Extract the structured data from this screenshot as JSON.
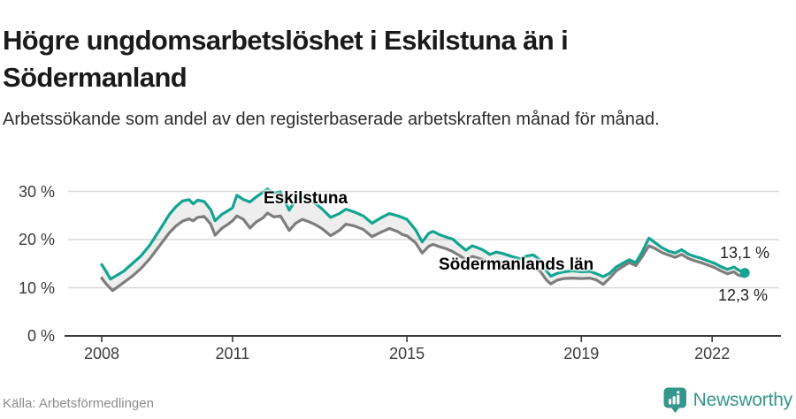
{
  "header": {
    "title": "Högre ungdomsarbetslöshet i Eskilstuna än i Södermanland",
    "subtitle": "Arbetssökande som andel av den registerbaserade arbetskraften månad för månad."
  },
  "footer": {
    "source": "Källa: Arbetsförmedlingen",
    "brand": "Newsworthy",
    "logo_icon": "bar-chart-speech-bubble-icon"
  },
  "colors": {
    "accent_teal": "#12a491",
    "gray_series": "#7d7d7d",
    "grid": "#d8d8d8",
    "axis": "#3a3a3a",
    "band_fill": "rgba(120,120,120,0.13)",
    "brand_teal": "#35968b",
    "title_text": "#1a1a1a",
    "tick_text": "#3b3b3b",
    "source_text": "#8c8c8c"
  },
  "chart_data": {
    "type": "line",
    "title": "Högre ungdomsarbetslöshet i Eskilstuna än i Södermanland",
    "subtitle": "Arbetssökande som andel av den registerbaserade arbetskraften månad för månad",
    "unit": "%",
    "xlabel": "",
    "ylabel": "",
    "grid": "horizontal",
    "legend": "inline-labels",
    "xlim": [
      2007.2,
      2023.5
    ],
    "ylim": [
      0,
      33
    ],
    "x_ticks": [
      {
        "label": "2008",
        "year": 2008
      },
      {
        "label": "2011",
        "year": 2011
      },
      {
        "label": "2015",
        "year": 2015
      },
      {
        "label": "2019",
        "year": 2019
      },
      {
        "label": "2022",
        "year": 2022
      }
    ],
    "y_ticks": [
      {
        "label": "0 %",
        "value": 0
      },
      {
        "label": "10 %",
        "value": 10
      },
      {
        "label": "20 %",
        "value": 20
      },
      {
        "label": "30 %",
        "value": 30
      }
    ],
    "band_fill_between_series": true,
    "series": [
      {
        "name": "Eskilstuna",
        "label": "Eskilstuna",
        "color": "#12a491",
        "end_label": "13,1 %",
        "end_value": 13.1,
        "end_marker": true,
        "points": [
          [
            2008.0,
            14.8
          ],
          [
            2008.1,
            13.4
          ],
          [
            2008.2,
            11.8
          ],
          [
            2008.35,
            12.6
          ],
          [
            2008.5,
            13.4
          ],
          [
            2008.7,
            15.0
          ],
          [
            2008.9,
            16.6
          ],
          [
            2009.1,
            18.8
          ],
          [
            2009.25,
            20.9
          ],
          [
            2009.4,
            23.0
          ],
          [
            2009.55,
            25.2
          ],
          [
            2009.7,
            26.8
          ],
          [
            2009.85,
            28.0
          ],
          [
            2010.0,
            28.3
          ],
          [
            2010.1,
            27.4
          ],
          [
            2010.2,
            28.2
          ],
          [
            2010.35,
            27.9
          ],
          [
            2010.5,
            26.2
          ],
          [
            2010.6,
            23.9
          ],
          [
            2010.75,
            25.2
          ],
          [
            2010.9,
            26.0
          ],
          [
            2011.0,
            26.6
          ],
          [
            2011.1,
            29.2
          ],
          [
            2011.25,
            28.3
          ],
          [
            2011.4,
            27.8
          ],
          [
            2011.55,
            28.9
          ],
          [
            2011.7,
            29.8
          ],
          [
            2011.8,
            30.5
          ],
          [
            2011.95,
            29.6
          ],
          [
            2012.1,
            29.9
          ],
          [
            2012.3,
            26.1
          ],
          [
            2012.45,
            28.3
          ],
          [
            2012.6,
            28.8
          ],
          [
            2012.75,
            28.2
          ],
          [
            2012.9,
            27.5
          ],
          [
            2013.05,
            26.4
          ],
          [
            2013.25,
            24.6
          ],
          [
            2013.45,
            25.4
          ],
          [
            2013.6,
            26.3
          ],
          [
            2013.8,
            25.7
          ],
          [
            2014.0,
            24.9
          ],
          [
            2014.2,
            23.4
          ],
          [
            2014.4,
            24.5
          ],
          [
            2014.6,
            25.4
          ],
          [
            2014.8,
            24.9
          ],
          [
            2015.0,
            24.2
          ],
          [
            2015.2,
            22.0
          ],
          [
            2015.35,
            19.5
          ],
          [
            2015.5,
            21.3
          ],
          [
            2015.6,
            21.7
          ],
          [
            2015.75,
            21.0
          ],
          [
            2015.9,
            20.5
          ],
          [
            2016.05,
            20.1
          ],
          [
            2016.2,
            18.9
          ],
          [
            2016.35,
            17.8
          ],
          [
            2016.5,
            18.7
          ],
          [
            2016.65,
            18.2
          ],
          [
            2016.75,
            17.8
          ],
          [
            2016.9,
            16.9
          ],
          [
            2017.05,
            17.4
          ],
          [
            2017.2,
            17.1
          ],
          [
            2017.4,
            16.5
          ],
          [
            2017.6,
            16.0
          ],
          [
            2017.75,
            16.6
          ],
          [
            2017.9,
            16.8
          ],
          [
            2018.05,
            15.8
          ],
          [
            2018.2,
            13.5
          ],
          [
            2018.3,
            12.4
          ],
          [
            2018.45,
            13.0
          ],
          [
            2018.6,
            13.3
          ],
          [
            2018.8,
            13.5
          ],
          [
            2019.0,
            13.3
          ],
          [
            2019.2,
            13.4
          ],
          [
            2019.35,
            12.9
          ],
          [
            2019.5,
            12.3
          ],
          [
            2019.65,
            13.0
          ],
          [
            2019.8,
            14.3
          ],
          [
            2019.95,
            15.1
          ],
          [
            2020.1,
            15.8
          ],
          [
            2020.25,
            15.2
          ],
          [
            2020.4,
            17.5
          ],
          [
            2020.55,
            20.3
          ],
          [
            2020.7,
            19.3
          ],
          [
            2020.85,
            18.3
          ],
          [
            2021.0,
            17.6
          ],
          [
            2021.15,
            17.2
          ],
          [
            2021.3,
            17.9
          ],
          [
            2021.45,
            17.0
          ],
          [
            2021.6,
            16.5
          ],
          [
            2021.75,
            16.1
          ],
          [
            2021.9,
            15.6
          ],
          [
            2022.05,
            15.1
          ],
          [
            2022.2,
            14.4
          ],
          [
            2022.35,
            13.8
          ],
          [
            2022.5,
            14.3
          ],
          [
            2022.6,
            13.7
          ],
          [
            2022.75,
            13.1
          ]
        ]
      },
      {
        "name": "Södermanlands län",
        "label": "Södermanlands län",
        "color": "#7d7d7d",
        "end_label": "12,3 %",
        "end_value": 12.3,
        "end_marker": false,
        "points": [
          [
            2008.0,
            12.0
          ],
          [
            2008.1,
            10.8
          ],
          [
            2008.25,
            9.4
          ],
          [
            2008.4,
            10.4
          ],
          [
            2008.55,
            11.4
          ],
          [
            2008.7,
            12.4
          ],
          [
            2008.9,
            14.0
          ],
          [
            2009.1,
            16.0
          ],
          [
            2009.25,
            17.8
          ],
          [
            2009.4,
            19.6
          ],
          [
            2009.55,
            21.4
          ],
          [
            2009.7,
            22.8
          ],
          [
            2009.85,
            23.8
          ],
          [
            2010.0,
            24.3
          ],
          [
            2010.1,
            23.9
          ],
          [
            2010.2,
            24.6
          ],
          [
            2010.35,
            24.8
          ],
          [
            2010.5,
            23.2
          ],
          [
            2010.6,
            20.9
          ],
          [
            2010.75,
            22.3
          ],
          [
            2010.9,
            23.2
          ],
          [
            2011.0,
            23.9
          ],
          [
            2011.1,
            24.9
          ],
          [
            2011.25,
            24.2
          ],
          [
            2011.4,
            22.4
          ],
          [
            2011.55,
            23.7
          ],
          [
            2011.7,
            24.5
          ],
          [
            2011.8,
            25.5
          ],
          [
            2011.95,
            24.7
          ],
          [
            2012.1,
            24.9
          ],
          [
            2012.3,
            21.9
          ],
          [
            2012.45,
            23.4
          ],
          [
            2012.6,
            24.2
          ],
          [
            2012.75,
            23.7
          ],
          [
            2012.9,
            23.1
          ],
          [
            2013.05,
            22.3
          ],
          [
            2013.25,
            20.8
          ],
          [
            2013.45,
            21.9
          ],
          [
            2013.6,
            23.2
          ],
          [
            2013.8,
            22.8
          ],
          [
            2014.0,
            22.1
          ],
          [
            2014.2,
            20.6
          ],
          [
            2014.4,
            21.5
          ],
          [
            2014.6,
            22.3
          ],
          [
            2014.8,
            21.6
          ],
          [
            2014.9,
            21.0
          ],
          [
            2015.0,
            20.8
          ],
          [
            2015.2,
            19.3
          ],
          [
            2015.35,
            17.2
          ],
          [
            2015.5,
            18.6
          ],
          [
            2015.6,
            19.0
          ],
          [
            2015.75,
            18.5
          ],
          [
            2015.9,
            18.1
          ],
          [
            2016.05,
            17.5
          ],
          [
            2016.2,
            16.7
          ],
          [
            2016.35,
            15.8
          ],
          [
            2016.5,
            16.5
          ],
          [
            2016.65,
            16.1
          ],
          [
            2016.75,
            15.8
          ],
          [
            2016.9,
            15.0
          ],
          [
            2017.05,
            15.5
          ],
          [
            2017.2,
            15.2
          ],
          [
            2017.4,
            14.8
          ],
          [
            2017.6,
            14.3
          ],
          [
            2017.75,
            14.7
          ],
          [
            2017.9,
            14.2
          ],
          [
            2018.05,
            13.5
          ],
          [
            2018.2,
            11.6
          ],
          [
            2018.3,
            10.8
          ],
          [
            2018.45,
            11.6
          ],
          [
            2018.6,
            11.9
          ],
          [
            2018.8,
            12.0
          ],
          [
            2019.0,
            11.9
          ],
          [
            2019.2,
            12.0
          ],
          [
            2019.35,
            11.6
          ],
          [
            2019.5,
            10.7
          ],
          [
            2019.65,
            12.0
          ],
          [
            2019.8,
            13.5
          ],
          [
            2019.95,
            14.4
          ],
          [
            2020.1,
            15.2
          ],
          [
            2020.25,
            14.6
          ],
          [
            2020.4,
            16.5
          ],
          [
            2020.55,
            18.7
          ],
          [
            2020.7,
            18.1
          ],
          [
            2020.85,
            17.3
          ],
          [
            2021.0,
            16.8
          ],
          [
            2021.15,
            16.3
          ],
          [
            2021.3,
            16.9
          ],
          [
            2021.45,
            16.1
          ],
          [
            2021.6,
            15.6
          ],
          [
            2021.75,
            15.2
          ],
          [
            2021.9,
            14.7
          ],
          [
            2022.05,
            14.2
          ],
          [
            2022.2,
            13.5
          ],
          [
            2022.35,
            12.9
          ],
          [
            2022.5,
            13.3
          ],
          [
            2022.6,
            12.6
          ],
          [
            2022.75,
            12.3
          ]
        ]
      }
    ]
  }
}
